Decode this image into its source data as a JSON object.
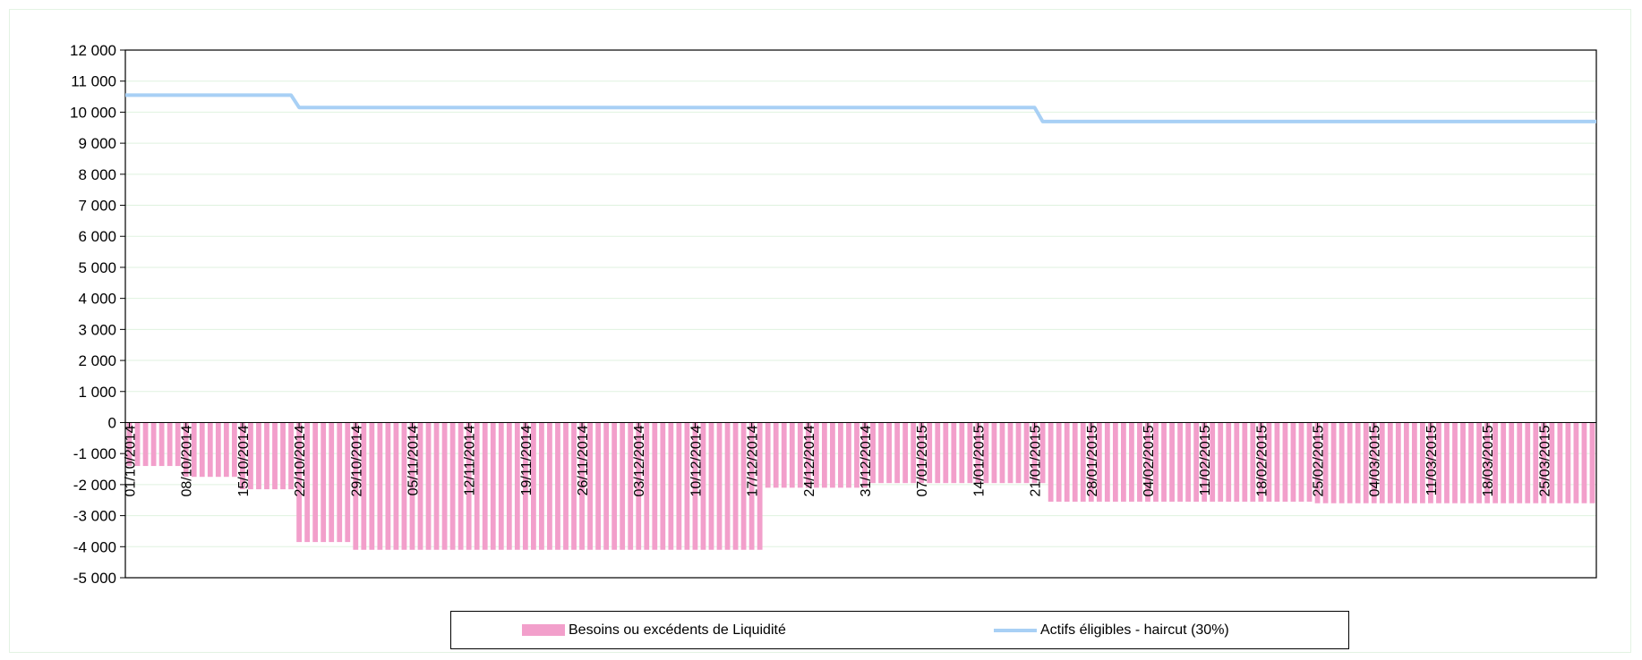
{
  "chart_data": {
    "type": "bar",
    "title": "",
    "xlabel": "",
    "ylabel": "",
    "ylim": [
      -5000,
      12000
    ],
    "y_ticks": [
      12000,
      11000,
      10000,
      9000,
      8000,
      7000,
      6000,
      5000,
      4000,
      3000,
      2000,
      1000,
      0,
      -1000,
      -2000,
      -3000,
      -4000,
      -5000
    ],
    "y_tick_labels": [
      "12 000",
      "11 000",
      "10 000",
      "9 000",
      "8 000",
      "7 000",
      "6 000",
      "5 000",
      "4 000",
      "3 000",
      "2 000",
      "1 000",
      "0",
      "-1 000",
      "-2 000",
      "-3 000",
      "-4 000",
      "-5 000"
    ],
    "x_tick_labels": [
      "01/10/2014",
      "08/10/2014",
      "15/10/2014",
      "22/10/2014",
      "29/10/2014",
      "05/11/2014",
      "12/11/2014",
      "19/11/2014",
      "26/11/2014",
      "03/12/2014",
      "10/12/2014",
      "17/12/2014",
      "24/12/2014",
      "31/12/2014",
      "07/01/2015",
      "14/01/2015",
      "21/01/2015",
      "28/01/2015",
      "04/02/2015",
      "11/02/2015",
      "18/02/2015",
      "25/02/2015",
      "04/03/2015",
      "11/03/2015",
      "18/03/2015",
      "25/03/2015"
    ],
    "x_range": [
      "01/10/2014",
      "31/03/2015"
    ],
    "grid": true,
    "legend_position": "bottom",
    "colors": {
      "bars": "#f29fcb",
      "line": "#a8d0f5",
      "grid": "#dff2df",
      "axis": "#000000"
    },
    "series": [
      {
        "name": "Besoins ou excédents de Liquidité",
        "type": "bar",
        "segments": [
          {
            "from": "01/10/2014",
            "to": "07/10/2014",
            "value": -1400
          },
          {
            "from": "08/10/2014",
            "to": "14/10/2014",
            "value": -1750
          },
          {
            "from": "15/10/2014",
            "to": "21/10/2014",
            "value": -2150
          },
          {
            "from": "22/10/2014",
            "to": "28/10/2014",
            "value": -3850
          },
          {
            "from": "29/10/2014",
            "to": "18/12/2014",
            "value": -4100
          },
          {
            "from": "19/12/2014",
            "to": "31/12/2014",
            "value": -2100
          },
          {
            "from": "01/01/2015",
            "to": "22/01/2015",
            "value": -1950
          },
          {
            "from": "23/01/2015",
            "to": "24/02/2015",
            "value": -2550
          },
          {
            "from": "25/02/2015",
            "to": "31/03/2015",
            "value": -2600
          }
        ]
      },
      {
        "name": "Actifs éligibles - haircut (30%)",
        "type": "line",
        "points": [
          {
            "x": "01/10/2014",
            "y": 10550
          },
          {
            "x": "21/10/2014",
            "y": 10550
          },
          {
            "x": "22/10/2014",
            "y": 10150
          },
          {
            "x": "21/01/2015",
            "y": 10150
          },
          {
            "x": "22/01/2015",
            "y": 9700
          },
          {
            "x": "31/03/2015",
            "y": 9700
          }
        ]
      }
    ]
  },
  "legend": {
    "bar_label": "Besoins ou excédents de Liquidité",
    "line_label": "Actifs éligibles - haircut (30%)"
  }
}
